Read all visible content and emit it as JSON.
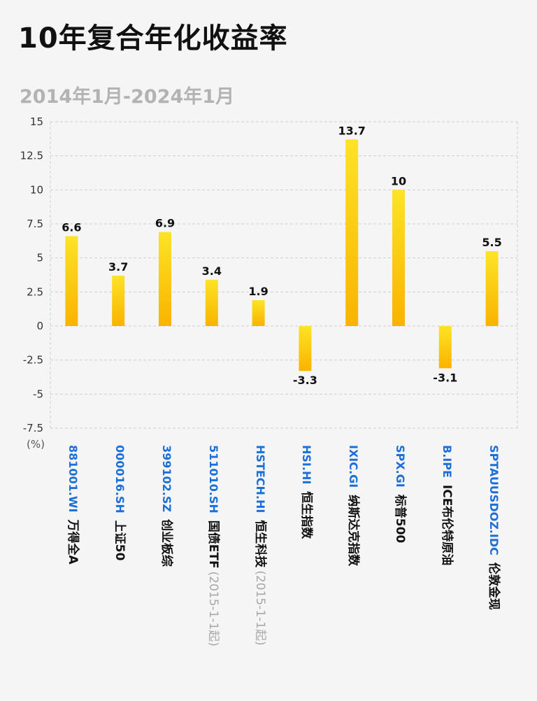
{
  "chart_data": {
    "type": "bar",
    "title": "10年复合年化收益率",
    "subtitle": "2014年1月-2024年1月",
    "ylabel": "(%)",
    "ylim": [
      -7.5,
      15
    ],
    "yticks": [
      "15",
      "12.5",
      "10",
      "7.5",
      "5",
      "2.5",
      "0",
      "-2.5",
      "-5",
      "-7.5"
    ],
    "ytick_values": [
      15,
      12.5,
      10,
      7.5,
      5,
      2.5,
      0,
      -2.5,
      -5,
      -7.5
    ],
    "grid": true,
    "categories": [
      {
        "code": "881001.WI",
        "name": "万得全A",
        "note": ""
      },
      {
        "code": "000016.SH",
        "name": "上证50",
        "note": ""
      },
      {
        "code": "399102.SZ",
        "name": "创业板综",
        "note": ""
      },
      {
        "code": "511010.SH",
        "name": "国债ETF",
        "note": "(2015-1-1起)"
      },
      {
        "code": "HSTECH.HI",
        "name": "恒生科技",
        "note": "(2015-1-1起)"
      },
      {
        "code": "HSI.HI",
        "name": "恒生指数",
        "note": ""
      },
      {
        "code": "IXIC.GI",
        "name": "纳斯达克指数",
        "note": ""
      },
      {
        "code": "SPX.GI",
        "name": "标普500",
        "note": ""
      },
      {
        "code": "B.IPE",
        "name": "ICE布伦特原油",
        "note": ""
      },
      {
        "code": "SPTAUUSDOZ.IDC",
        "name": "伦敦金现",
        "note": ""
      }
    ],
    "values": [
      6.6,
      3.7,
      6.9,
      3.4,
      1.9,
      -3.3,
      13.7,
      10,
      -3.1,
      5.5
    ],
    "value_labels": [
      "6.6",
      "3.7",
      "6.9",
      "3.4",
      "1.9",
      "-3.3",
      "13.7",
      "10",
      "-3.1",
      "5.5"
    ],
    "colors": {
      "bar_top": "#fde326",
      "bar_bottom": "#f9b300",
      "grid": "#cfcfcf",
      "code": "#1a6fd8",
      "note": "#a8a8a8"
    }
  }
}
